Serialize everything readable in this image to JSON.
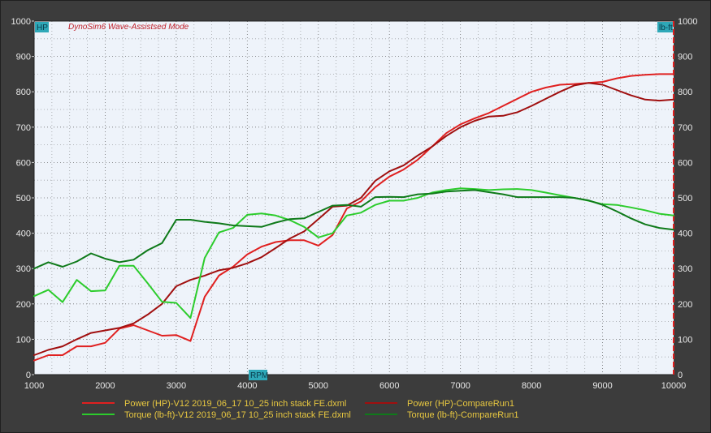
{
  "colors": {
    "frame_bg": "#3c3c3c",
    "plot_bg": "#eef3fa",
    "grid": "#606060",
    "tick_text": "#e8e8e8",
    "legend_text": "#e8c840",
    "title_text": "#c0202a",
    "unit_box": "#2ea8b8",
    "right_axis": "#e02020"
  },
  "chart_data": {
    "type": "line",
    "title": "DynoSim6 Wave-Assistsed Mode",
    "left_unit": "HP",
    "right_unit": "lb-ft",
    "xlabel": "RPM",
    "xlim": [
      1000,
      10000
    ],
    "ylim": [
      0,
      1000
    ],
    "x_ticks": [
      1000,
      2000,
      3000,
      4000,
      5000,
      6000,
      7000,
      8000,
      9000,
      10000
    ],
    "y_ticks": [
      0,
      100,
      200,
      300,
      400,
      500,
      600,
      700,
      800,
      900,
      1000
    ],
    "grid": true,
    "legend_position": "bottom",
    "series": [
      {
        "name": "Power (HP)-V12 2019_06_17 10_25 inch stack FE.dxml",
        "color": "#e02020",
        "points": [
          [
            1000,
            40
          ],
          [
            1200,
            55
          ],
          [
            1400,
            55
          ],
          [
            1600,
            80
          ],
          [
            1800,
            80
          ],
          [
            2000,
            90
          ],
          [
            2200,
            130
          ],
          [
            2400,
            140
          ],
          [
            2600,
            125
          ],
          [
            2800,
            110
          ],
          [
            3000,
            112
          ],
          [
            3200,
            95
          ],
          [
            3400,
            220
          ],
          [
            3600,
            280
          ],
          [
            3800,
            305
          ],
          [
            4000,
            340
          ],
          [
            4200,
            362
          ],
          [
            4400,
            375
          ],
          [
            4600,
            380
          ],
          [
            4800,
            380
          ],
          [
            5000,
            365
          ],
          [
            5200,
            395
          ],
          [
            5400,
            470
          ],
          [
            5600,
            490
          ],
          [
            5800,
            530
          ],
          [
            6000,
            560
          ],
          [
            6200,
            580
          ],
          [
            6400,
            608
          ],
          [
            6600,
            645
          ],
          [
            6800,
            683
          ],
          [
            7000,
            708
          ],
          [
            7200,
            725
          ],
          [
            7400,
            740
          ],
          [
            7600,
            760
          ],
          [
            7800,
            780
          ],
          [
            8000,
            800
          ],
          [
            8200,
            812
          ],
          [
            8400,
            820
          ],
          [
            8600,
            822
          ],
          [
            8800,
            825
          ],
          [
            9000,
            828
          ],
          [
            9200,
            838
          ],
          [
            9400,
            845
          ],
          [
            9600,
            848
          ],
          [
            9800,
            850
          ],
          [
            10000,
            850
          ]
        ]
      },
      {
        "name": "Power (HP)-CompareRun1",
        "color": "#a00f0f",
        "points": [
          [
            1000,
            55
          ],
          [
            1200,
            70
          ],
          [
            1400,
            80
          ],
          [
            1600,
            100
          ],
          [
            1800,
            118
          ],
          [
            2000,
            125
          ],
          [
            2200,
            132
          ],
          [
            2400,
            145
          ],
          [
            2600,
            170
          ],
          [
            2800,
            200
          ],
          [
            3000,
            250
          ],
          [
            3200,
            268
          ],
          [
            3400,
            280
          ],
          [
            3600,
            295
          ],
          [
            3800,
            302
          ],
          [
            4000,
            315
          ],
          [
            4200,
            332
          ],
          [
            4400,
            358
          ],
          [
            4600,
            385
          ],
          [
            4800,
            405
          ],
          [
            5000,
            440
          ],
          [
            5200,
            475
          ],
          [
            5400,
            478
          ],
          [
            5600,
            500
          ],
          [
            5800,
            548
          ],
          [
            6000,
            575
          ],
          [
            6200,
            592
          ],
          [
            6400,
            620
          ],
          [
            6600,
            645
          ],
          [
            6800,
            675
          ],
          [
            7000,
            700
          ],
          [
            7200,
            718
          ],
          [
            7400,
            730
          ],
          [
            7600,
            732
          ],
          [
            7800,
            742
          ],
          [
            8000,
            760
          ],
          [
            8200,
            780
          ],
          [
            8400,
            800
          ],
          [
            8600,
            818
          ],
          [
            8800,
            825
          ],
          [
            9000,
            820
          ],
          [
            9200,
            805
          ],
          [
            9400,
            790
          ],
          [
            9600,
            778
          ],
          [
            9800,
            775
          ],
          [
            10000,
            778
          ]
        ]
      },
      {
        "name": "Torque (lb-ft)-V12 2019_06_17 10_25 inch stack FE.dxml",
        "color": "#2ccc2c",
        "points": [
          [
            1000,
            222
          ],
          [
            1200,
            240
          ],
          [
            1400,
            205
          ],
          [
            1600,
            268
          ],
          [
            1800,
            236
          ],
          [
            2000,
            238
          ],
          [
            2200,
            308
          ],
          [
            2400,
            308
          ],
          [
            2600,
            258
          ],
          [
            2800,
            206
          ],
          [
            3000,
            203
          ],
          [
            3200,
            160
          ],
          [
            3400,
            330
          ],
          [
            3600,
            402
          ],
          [
            3800,
            415
          ],
          [
            4000,
            452
          ],
          [
            4200,
            456
          ],
          [
            4400,
            450
          ],
          [
            4600,
            437
          ],
          [
            4800,
            418
          ],
          [
            5000,
            388
          ],
          [
            5200,
            400
          ],
          [
            5400,
            450
          ],
          [
            5600,
            458
          ],
          [
            5800,
            480
          ],
          [
            6000,
            492
          ],
          [
            6200,
            492
          ],
          [
            6400,
            500
          ],
          [
            6600,
            515
          ],
          [
            6800,
            522
          ],
          [
            7000,
            527
          ],
          [
            7200,
            525
          ],
          [
            7400,
            522
          ],
          [
            7600,
            524
          ],
          [
            7800,
            525
          ],
          [
            8000,
            522
          ],
          [
            8200,
            515
          ],
          [
            8400,
            507
          ],
          [
            8600,
            500
          ],
          [
            8800,
            492
          ],
          [
            9000,
            482
          ],
          [
            9200,
            480
          ],
          [
            9400,
            473
          ],
          [
            9600,
            465
          ],
          [
            9800,
            455
          ],
          [
            10000,
            450
          ]
        ]
      },
      {
        "name": "Torque (lb-ft)-CompareRun1",
        "color": "#0f7a1a",
        "points": [
          [
            1000,
            300
          ],
          [
            1200,
            318
          ],
          [
            1400,
            305
          ],
          [
            1600,
            320
          ],
          [
            1800,
            343
          ],
          [
            2000,
            328
          ],
          [
            2200,
            318
          ],
          [
            2400,
            325
          ],
          [
            2600,
            352
          ],
          [
            2800,
            372
          ],
          [
            3000,
            438
          ],
          [
            3200,
            438
          ],
          [
            3400,
            432
          ],
          [
            3600,
            428
          ],
          [
            3800,
            422
          ],
          [
            4000,
            420
          ],
          [
            4200,
            418
          ],
          [
            4400,
            430
          ],
          [
            4600,
            440
          ],
          [
            4800,
            442
          ],
          [
            5000,
            460
          ],
          [
            5200,
            478
          ],
          [
            5400,
            480
          ],
          [
            5600,
            475
          ],
          [
            5800,
            502
          ],
          [
            6000,
            503
          ],
          [
            6200,
            502
          ],
          [
            6400,
            510
          ],
          [
            6600,
            512
          ],
          [
            6800,
            518
          ],
          [
            7000,
            520
          ],
          [
            7200,
            522
          ],
          [
            7400,
            516
          ],
          [
            7600,
            510
          ],
          [
            7800,
            502
          ],
          [
            8000,
            502
          ],
          [
            8200,
            502
          ],
          [
            8400,
            502
          ],
          [
            8600,
            500
          ],
          [
            8800,
            493
          ],
          [
            9000,
            480
          ],
          [
            9200,
            462
          ],
          [
            9400,
            442
          ],
          [
            9600,
            425
          ],
          [
            9800,
            415
          ],
          [
            10000,
            410
          ]
        ]
      }
    ]
  }
}
